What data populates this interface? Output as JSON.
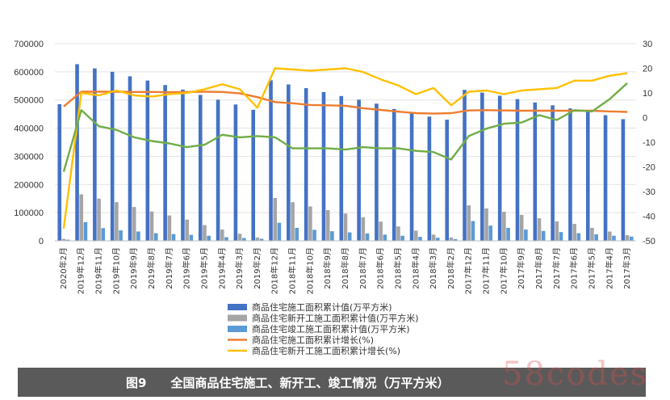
{
  "caption": {
    "number": "图9",
    "title": "全国商品住宅施工、新开工、竣工情况（万平方米）"
  },
  "watermark": "58codes",
  "chart_data": {
    "type": "bar+line",
    "categories": [
      "2020年2月",
      "2019年12月",
      "2019年11月",
      "2019年10月",
      "2019年9月",
      "2019年8月",
      "2019年7月",
      "2019年6月",
      "2019年5月",
      "2019年4月",
      "2019年3月",
      "2019年2月",
      "2018年12月",
      "2018年11月",
      "2018年10月",
      "2018年9月",
      "2018年8月",
      "2018年7月",
      "2018年6月",
      "2018年5月",
      "2018年4月",
      "2018年3月",
      "2018年2月",
      "2017年12月",
      "2017年11月",
      "2017年10月",
      "2017年9月",
      "2017年8月",
      "2017年7月",
      "2017年6月",
      "2017年5月",
      "2017年4月",
      "2017年3月"
    ],
    "y_left": {
      "min": 0,
      "max": 700000,
      "ticks": [
        "0",
        "100000",
        "200000",
        "300000",
        "400000",
        "500000",
        "600000",
        "700000"
      ]
    },
    "y_right": {
      "min": -50,
      "max": 30,
      "ticks": [
        "-50",
        "-40",
        "-30",
        "-20",
        "-10",
        "0",
        "10",
        "20",
        "30"
      ]
    },
    "series": [
      {
        "name": "商品住宅施工面积累计值(万平方米)",
        "kind": "bar",
        "axis": "left",
        "color": "#4472c4",
        "values": [
          485000,
          627000,
          612000,
          600000,
          584000,
          569000,
          553000,
          537000,
          518000,
          501000,
          484000,
          465000,
          570000,
          555000,
          542000,
          528000,
          514000,
          501000,
          487000,
          468000,
          452000,
          441000,
          430000,
          536000,
          526000,
          515000,
          503000,
          491000,
          481000,
          470000,
          459000,
          446000,
          432000
        ]
      },
      {
        "name": "商品住宅新开工施工面积累计值(万平方米)",
        "kind": "bar",
        "axis": "left",
        "color": "#a5a5a5",
        "values": [
          7000,
          165000,
          150000,
          137000,
          120000,
          104000,
          90000,
          75000,
          56000,
          40000,
          25000,
          12000,
          152000,
          137000,
          122000,
          109000,
          97000,
          84000,
          68000,
          51000,
          36000,
          22000,
          12000,
          126000,
          115000,
          103000,
          92000,
          80000,
          69000,
          60000,
          46000,
          33000,
          20000
        ]
      },
      {
        "name": "商品住宅竣工施工面积累计值(万平方米)",
        "kind": "bar",
        "axis": "left",
        "color": "#5b9bd5",
        "values": [
          4000,
          66000,
          45000,
          37000,
          33000,
          27000,
          24000,
          21000,
          18000,
          13000,
          10000,
          7000,
          64000,
          46000,
          39000,
          34000,
          30000,
          26000,
          22000,
          18000,
          14000,
          11000,
          6000,
          70000,
          54000,
          46000,
          40000,
          35000,
          31000,
          27000,
          23000,
          18000,
          15000
        ]
      },
      {
        "name": "商品住宅施工面积累计增长(%)",
        "kind": "line",
        "axis": "right",
        "color": "#ed7d31",
        "values": [
          4.5,
          10.5,
          10.5,
          10.5,
          10.4,
          10.4,
          10.3,
          10.4,
          10.5,
          10.4,
          9.8,
          8.3,
          6.3,
          5.8,
          5.1,
          5.0,
          4.8,
          3.8,
          3.1,
          2.4,
          1.8,
          1.6,
          1.8,
          2.9,
          3.0,
          2.9,
          2.8,
          2.8,
          2.8,
          2.8,
          2.8,
          2.5,
          2.3
        ]
      },
      {
        "name": "商品住宅新开工施工面积累计增长(%)",
        "kind": "line",
        "axis": "right",
        "color": "#ffc000",
        "values": [
          -45,
          10,
          9,
          11,
          9,
          8.5,
          9.5,
          10,
          11.5,
          13.5,
          11.5,
          4,
          20,
          19.5,
          19,
          19.5,
          20,
          18.5,
          15.5,
          13,
          9.5,
          12,
          5,
          10.5,
          11,
          9.5,
          11,
          11.5,
          12,
          15,
          15,
          17,
          18
        ]
      },
      {
        "name": "",
        "kind": "line",
        "axis": "right",
        "color": "#70ad47",
        "values": [
          -22,
          3,
          -3.5,
          -5,
          -8,
          -9.5,
          -10.5,
          -12,
          -11,
          -7,
          -8,
          -7.5,
          -8,
          -12.5,
          -12.5,
          -12.5,
          -13,
          -12,
          -12.5,
          -12.5,
          -13.5,
          -14,
          -17,
          -7.5,
          -4.5,
          -2.5,
          -2,
          1,
          -1,
          3,
          2.5,
          7.5,
          14
        ]
      }
    ]
  }
}
